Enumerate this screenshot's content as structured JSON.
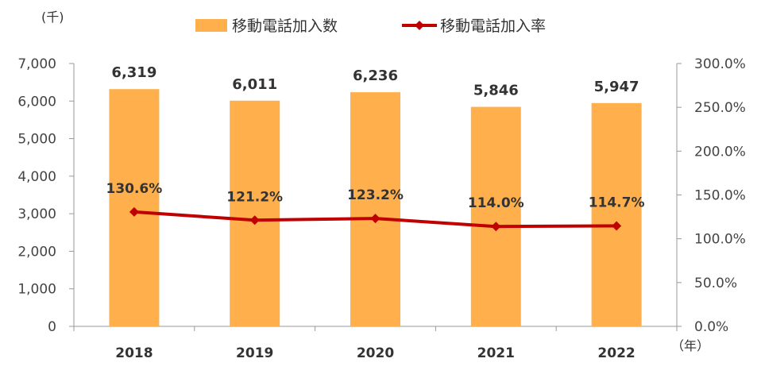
{
  "chart_data": {
    "type": "bar+line",
    "categories": [
      "2018",
      "2019",
      "2020",
      "2021",
      "2022"
    ],
    "series": [
      {
        "name": "移動電話加入数",
        "type": "bar",
        "axis": "left",
        "values": [
          6319,
          6011,
          6236,
          5846,
          5947
        ],
        "labels": [
          "6,319",
          "6,011",
          "6,236",
          "5,846",
          "5,947"
        ]
      },
      {
        "name": "移動電話加入率",
        "type": "line",
        "axis": "right",
        "values": [
          130.6,
          121.2,
          123.2,
          114.0,
          114.7
        ],
        "labels": [
          "130.6%",
          "121.2%",
          "123.2%",
          "114.0%",
          "114.7%"
        ]
      }
    ],
    "y_left": {
      "unit_label": "(千)",
      "range": [
        0,
        7000
      ],
      "ticks": [
        0,
        1000,
        2000,
        3000,
        4000,
        5000,
        6000,
        7000
      ],
      "tick_labels": [
        "0",
        "1,000",
        "2,000",
        "3,000",
        "4,000",
        "5,000",
        "6,000",
        "7,000"
      ]
    },
    "y_right": {
      "range": [
        0,
        300
      ],
      "ticks": [
        0,
        50,
        100,
        150,
        200,
        250,
        300
      ],
      "tick_labels": [
        "0.0%",
        "50.0%",
        "100.0%",
        "150.0%",
        "200.0%",
        "250.0%",
        "300.0%"
      ]
    },
    "x_unit_label": "（年）",
    "legend_position": "top-center",
    "grid": false
  },
  "colors": {
    "bar": "#FFB04C",
    "line": "#C00000",
    "axis": "#999999"
  }
}
